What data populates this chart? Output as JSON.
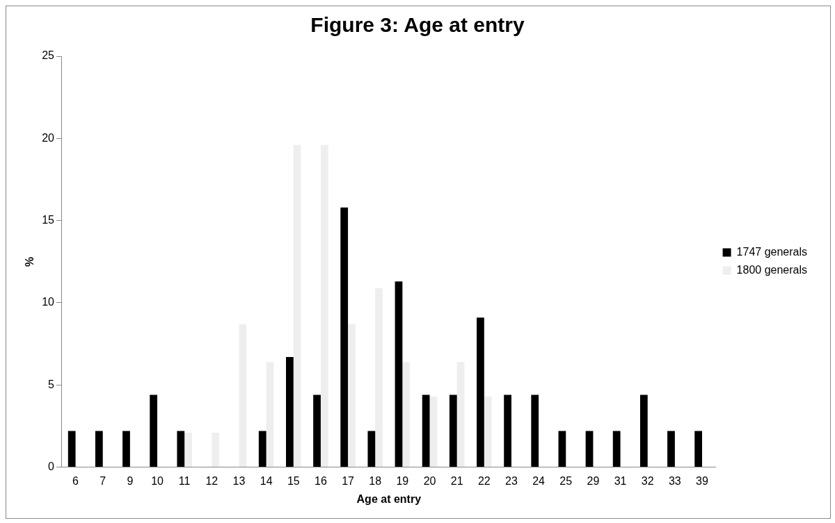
{
  "chart_data": {
    "type": "bar",
    "title": "Figure 3: Age at entry",
    "xlabel": "Age at entry",
    "ylabel": "%",
    "categories": [
      "6",
      "7",
      "9",
      "10",
      "11",
      "12",
      "13",
      "14",
      "15",
      "16",
      "17",
      "18",
      "19",
      "20",
      "21",
      "22",
      "23",
      "24",
      "25",
      "29",
      "31",
      "32",
      "33",
      "39"
    ],
    "series": [
      {
        "name": "1747 generals",
        "color": "#000000",
        "values": [
          2.2,
          2.2,
          2.2,
          4.4,
          2.2,
          0,
          0,
          2.2,
          6.7,
          4.4,
          15.8,
          2.2,
          11.3,
          4.4,
          4.4,
          9.1,
          4.4,
          4.4,
          2.2,
          2.2,
          2.2,
          4.4,
          2.2,
          2.2
        ]
      },
      {
        "name": "1800 generals",
        "color": "#eeeeee",
        "values": [
          0,
          0,
          0,
          0,
          2.1,
          2.1,
          8.7,
          6.4,
          19.6,
          19.6,
          8.7,
          10.9,
          6.4,
          4.3,
          6.4,
          4.3,
          0,
          0,
          0,
          0,
          0,
          0,
          0,
          0
        ]
      }
    ],
    "ylim": [
      0,
      25
    ],
    "yticks": [
      0,
      5,
      10,
      15,
      20,
      25
    ],
    "grid": false,
    "legend": "right"
  }
}
